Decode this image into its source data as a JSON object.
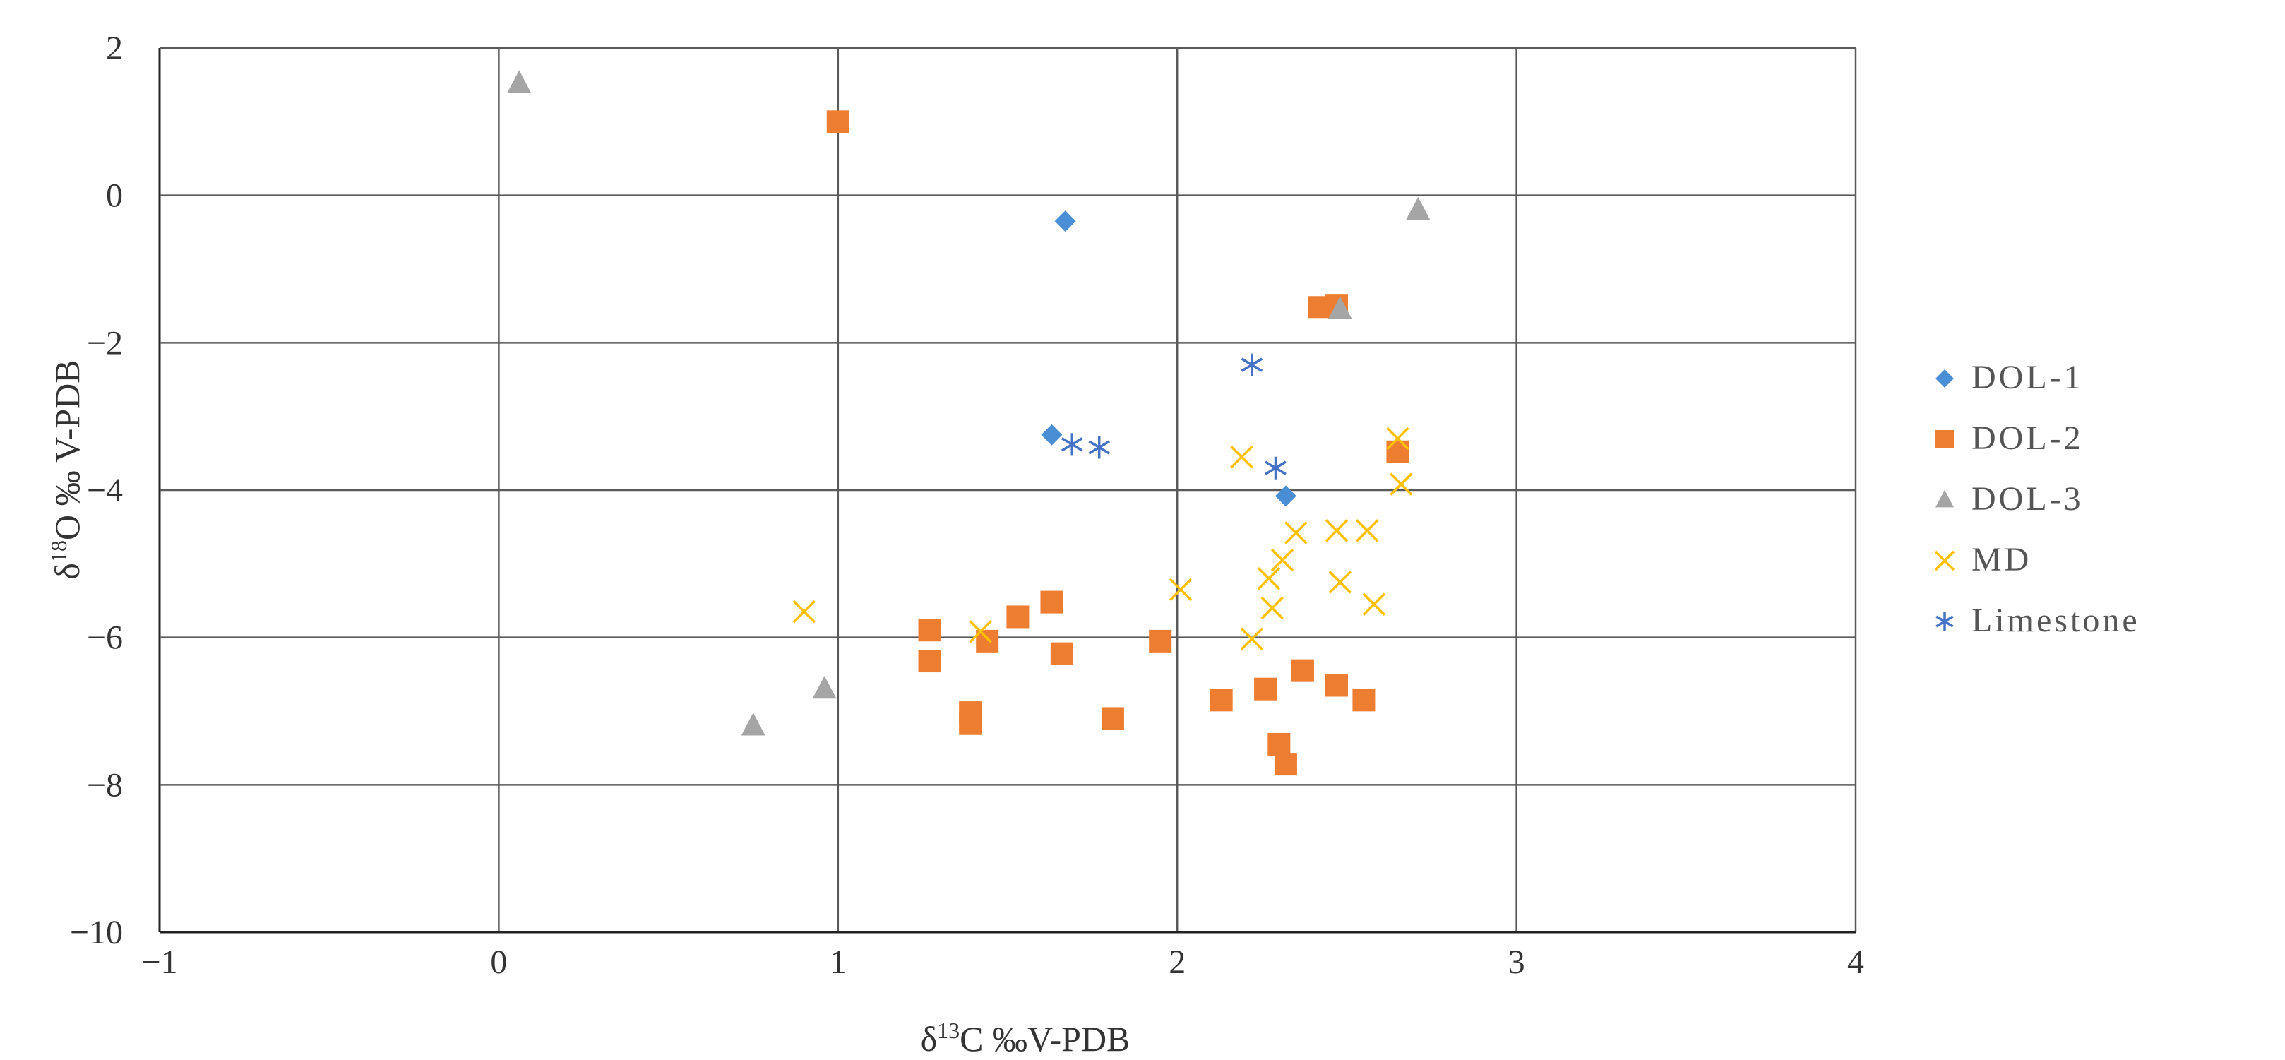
{
  "chart_data": {
    "type": "scatter",
    "xlabel_parts": {
      "delta": "δ",
      "mass": "13",
      "rest": "C ‰V-PDB"
    },
    "ylabel_parts": {
      "delta": "δ",
      "mass": "18",
      "rest": "O ‰ V-PDB"
    },
    "xlim": [
      -1,
      4
    ],
    "ylim": [
      -10,
      2
    ],
    "xticks": [
      -1,
      0,
      1,
      2,
      3,
      4
    ],
    "yticks": [
      -10,
      -8,
      -6,
      -4,
      -2,
      0,
      2
    ],
    "xtick_labels": [
      "−1",
      "0",
      "1",
      "2",
      "3",
      "4"
    ],
    "ytick_labels": [
      "−10",
      "−8",
      "−6",
      "−4",
      "−2",
      "0",
      "2"
    ],
    "grid": true,
    "legend_position": "right",
    "series": [
      {
        "name": "DOL-1",
        "marker": "diamond",
        "color": "#4A8FD6",
        "points": [
          [
            1.67,
            -0.35
          ],
          [
            1.63,
            -3.25
          ],
          [
            2.32,
            -4.08
          ]
        ]
      },
      {
        "name": "DOL-2",
        "marker": "square",
        "color": "#ED7D31",
        "points": [
          [
            1.0,
            1.0
          ],
          [
            2.42,
            -1.52
          ],
          [
            2.47,
            -1.5
          ],
          [
            2.65,
            -3.48
          ],
          [
            1.27,
            -5.9
          ],
          [
            1.27,
            -6.32
          ],
          [
            1.44,
            -6.05
          ],
          [
            1.53,
            -5.72
          ],
          [
            1.63,
            -5.52
          ],
          [
            1.66,
            -6.22
          ],
          [
            1.95,
            -6.05
          ],
          [
            1.39,
            -7.02
          ],
          [
            1.39,
            -7.17
          ],
          [
            1.81,
            -7.1
          ],
          [
            2.13,
            -6.85
          ],
          [
            2.26,
            -6.7
          ],
          [
            2.37,
            -6.45
          ],
          [
            2.47,
            -6.65
          ],
          [
            2.55,
            -6.85
          ],
          [
            2.3,
            -7.45
          ],
          [
            2.32,
            -7.72
          ]
        ]
      },
      {
        "name": "DOL-3",
        "marker": "triangle",
        "color": "#A5A5A5",
        "points": [
          [
            0.06,
            1.52
          ],
          [
            2.71,
            -0.2
          ],
          [
            2.48,
            -1.55
          ],
          [
            0.96,
            -6.7
          ],
          [
            0.75,
            -7.2
          ]
        ]
      },
      {
        "name": "MD",
        "marker": "x",
        "color": "#FFC000",
        "points": [
          [
            0.9,
            -5.65
          ],
          [
            1.42,
            -5.92
          ],
          [
            2.01,
            -5.35
          ],
          [
            2.19,
            -3.55
          ],
          [
            2.22,
            -6.02
          ],
          [
            2.27,
            -5.2
          ],
          [
            2.28,
            -5.6
          ],
          [
            2.31,
            -4.95
          ],
          [
            2.35,
            -4.58
          ],
          [
            2.47,
            -4.55
          ],
          [
            2.48,
            -5.25
          ],
          [
            2.56,
            -4.55
          ],
          [
            2.58,
            -5.55
          ],
          [
            2.65,
            -3.3
          ],
          [
            2.66,
            -3.92
          ]
        ]
      },
      {
        "name": "Limestone",
        "marker": "asterisk",
        "color": "#4472C4",
        "points": [
          [
            1.69,
            -3.38
          ],
          [
            1.77,
            -3.42
          ],
          [
            2.22,
            -2.3
          ],
          [
            2.29,
            -3.7
          ]
        ]
      }
    ]
  }
}
